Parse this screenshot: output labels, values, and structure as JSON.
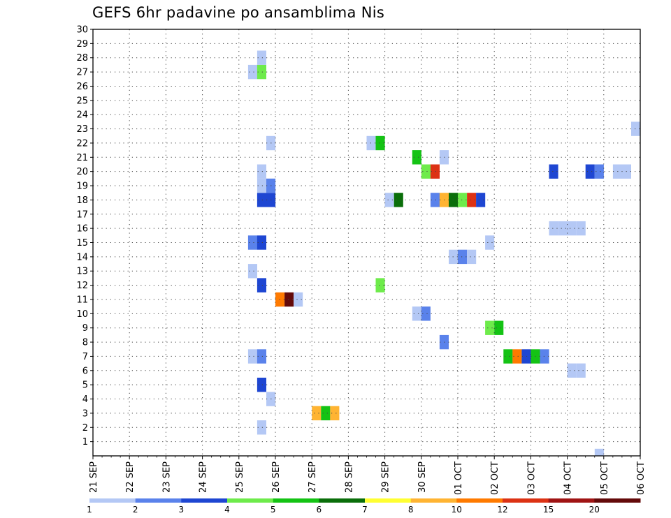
{
  "chart_data": {
    "type": "heatmap",
    "title": "GEFS 6hr padavine po ansamblima Nis",
    "x_tick_labels": [
      "21 SEP",
      "22 SEP",
      "23 SEP",
      "24 SEP",
      "25 SEP",
      "26 SEP",
      "27 SEP",
      "28 SEP",
      "29 SEP",
      "30 SEP",
      "01 OCT",
      "02 OCT",
      "03 OCT",
      "04 OCT",
      "05 OCT",
      "06 OCT"
    ],
    "xlim": [
      "21 SEP 00Z",
      "06 OCT 00Z"
    ],
    "time_step_hours": 6,
    "y_tick_labels": [
      "1",
      "2",
      "3",
      "4",
      "5",
      "6",
      "7",
      "8",
      "9",
      "10",
      "11",
      "12",
      "13",
      "14",
      "15",
      "16",
      "17",
      "18",
      "19",
      "20",
      "21",
      "22",
      "23",
      "24",
      "25",
      "26",
      "27",
      "28",
      "29",
      "30"
    ],
    "ylim": [
      0,
      30
    ],
    "grid": true,
    "colorbar": {
      "labels": [
        "1",
        "2",
        "3",
        "4",
        "5",
        "6",
        "7",
        "8",
        "10",
        "12",
        "15",
        "20"
      ],
      "colors": [
        "#b4c8f5",
        "#5a82eb",
        "#1e46d2",
        "#6eeb4b",
        "#14c314",
        "#0a6e0a",
        "#ffff32",
        "#ffb432",
        "#ff7a00",
        "#dc3214",
        "#a01414",
        "#640a0a"
      ]
    },
    "cells": [
      {
        "member": 2,
        "time": "25 SEP 12Z",
        "class": 1
      },
      {
        "member": 3,
        "time": "27 SEP 00Z",
        "class": 8
      },
      {
        "member": 3,
        "time": "27 SEP 06Z",
        "class": 5
      },
      {
        "member": 3,
        "time": "27 SEP 12Z",
        "class": 8
      },
      {
        "member": 4,
        "time": "25 SEP 18Z",
        "class": 1
      },
      {
        "member": 5,
        "time": "25 SEP 12Z",
        "class": 3
      },
      {
        "member": 7,
        "time": "25 SEP 06Z",
        "class": 1
      },
      {
        "member": 7,
        "time": "25 SEP 12Z",
        "class": 2
      },
      {
        "member": 7,
        "time": "02 OCT 06Z",
        "class": 5
      },
      {
        "member": 7,
        "time": "02 OCT 12Z",
        "class": 9
      },
      {
        "member": 7,
        "time": "02 OCT 18Z",
        "class": 3
      },
      {
        "member": 7,
        "time": "03 OCT 00Z",
        "class": 5
      },
      {
        "member": 7,
        "time": "03 OCT 06Z",
        "class": 2
      },
      {
        "member": 6,
        "time": "04 OCT 00Z",
        "class": 1
      },
      {
        "member": 6,
        "time": "04 OCT 06Z",
        "class": 1
      },
      {
        "member": 8,
        "time": "30 SEP 12Z",
        "class": 2
      },
      {
        "member": 9,
        "time": "01 OCT 18Z",
        "class": 4
      },
      {
        "member": 9,
        "time": "02 OCT 00Z",
        "class": 5
      },
      {
        "member": 10,
        "time": "29 SEP 18Z",
        "class": 1
      },
      {
        "member": 10,
        "time": "30 SEP 00Z",
        "class": 2
      },
      {
        "member": 11,
        "time": "26 SEP 00Z",
        "class": 9
      },
      {
        "member": 11,
        "time": "26 SEP 06Z",
        "class": 12
      },
      {
        "member": 11,
        "time": "26 SEP 12Z",
        "class": 1
      },
      {
        "member": 12,
        "time": "25 SEP 12Z",
        "class": 3
      },
      {
        "member": 12,
        "time": "28 SEP 18Z",
        "class": 4
      },
      {
        "member": 13,
        "time": "25 SEP 06Z",
        "class": 1
      },
      {
        "member": 14,
        "time": "30 SEP 18Z",
        "class": 1
      },
      {
        "member": 14,
        "time": "01 OCT 00Z",
        "class": 2
      },
      {
        "member": 14,
        "time": "01 OCT 06Z",
        "class": 1
      },
      {
        "member": 15,
        "time": "25 SEP 06Z",
        "class": 2
      },
      {
        "member": 15,
        "time": "25 SEP 12Z",
        "class": 3
      },
      {
        "member": 15,
        "time": "01 OCT 18Z",
        "class": 1
      },
      {
        "member": 16,
        "time": "03 OCT 12Z",
        "class": 1
      },
      {
        "member": 16,
        "time": "03 OCT 18Z",
        "class": 1
      },
      {
        "member": 16,
        "time": "04 OCT 00Z",
        "class": 1
      },
      {
        "member": 16,
        "time": "04 OCT 06Z",
        "class": 1
      },
      {
        "member": 18,
        "time": "25 SEP 12Z",
        "class": 3
      },
      {
        "member": 18,
        "time": "25 SEP 18Z",
        "class": 3
      },
      {
        "member": 18,
        "time": "29 SEP 00Z",
        "class": 1
      },
      {
        "member": 18,
        "time": "29 SEP 06Z",
        "class": 6
      },
      {
        "member": 18,
        "time": "30 SEP 06Z",
        "class": 2
      },
      {
        "member": 18,
        "time": "30 SEP 12Z",
        "class": 8
      },
      {
        "member": 18,
        "time": "30 SEP 18Z",
        "class": 6
      },
      {
        "member": 18,
        "time": "01 OCT 00Z",
        "class": 4
      },
      {
        "member": 18,
        "time": "01 OCT 06Z",
        "class": 10
      },
      {
        "member": 18,
        "time": "01 OCT 12Z",
        "class": 3
      },
      {
        "member": 19,
        "time": "25 SEP 12Z",
        "class": 1
      },
      {
        "member": 19,
        "time": "25 SEP 18Z",
        "class": 2
      },
      {
        "member": 20,
        "time": "25 SEP 12Z",
        "class": 1
      },
      {
        "member": 20,
        "time": "30 SEP 00Z",
        "class": 4
      },
      {
        "member": 20,
        "time": "30 SEP 06Z",
        "class": 10
      },
      {
        "member": 20,
        "time": "03 OCT 12Z",
        "class": 3
      },
      {
        "member": 20,
        "time": "04 OCT 12Z",
        "class": 3
      },
      {
        "member": 20,
        "time": "04 OCT 18Z",
        "class": 2
      },
      {
        "member": 20,
        "time": "05 OCT 06Z",
        "class": 1
      },
      {
        "member": 20,
        "time": "05 OCT 12Z",
        "class": 1
      },
      {
        "member": 21,
        "time": "29 SEP 18Z",
        "class": 5
      },
      {
        "member": 21,
        "time": "30 SEP 12Z",
        "class": 1
      },
      {
        "member": 22,
        "time": "25 SEP 18Z",
        "class": 1
      },
      {
        "member": 22,
        "time": "28 SEP 12Z",
        "class": 1
      },
      {
        "member": 22,
        "time": "28 SEP 18Z",
        "class": 5
      },
      {
        "member": 23,
        "time": "05 OCT 18Z",
        "class": 1
      },
      {
        "member": 27,
        "time": "25 SEP 06Z",
        "class": 1
      },
      {
        "member": 27,
        "time": "25 SEP 12Z",
        "class": 4
      },
      {
        "member": 28,
        "time": "25 SEP 12Z",
        "class": 1
      },
      {
        "member": 0,
        "time": "04 OCT 18Z",
        "class": 1
      }
    ]
  }
}
